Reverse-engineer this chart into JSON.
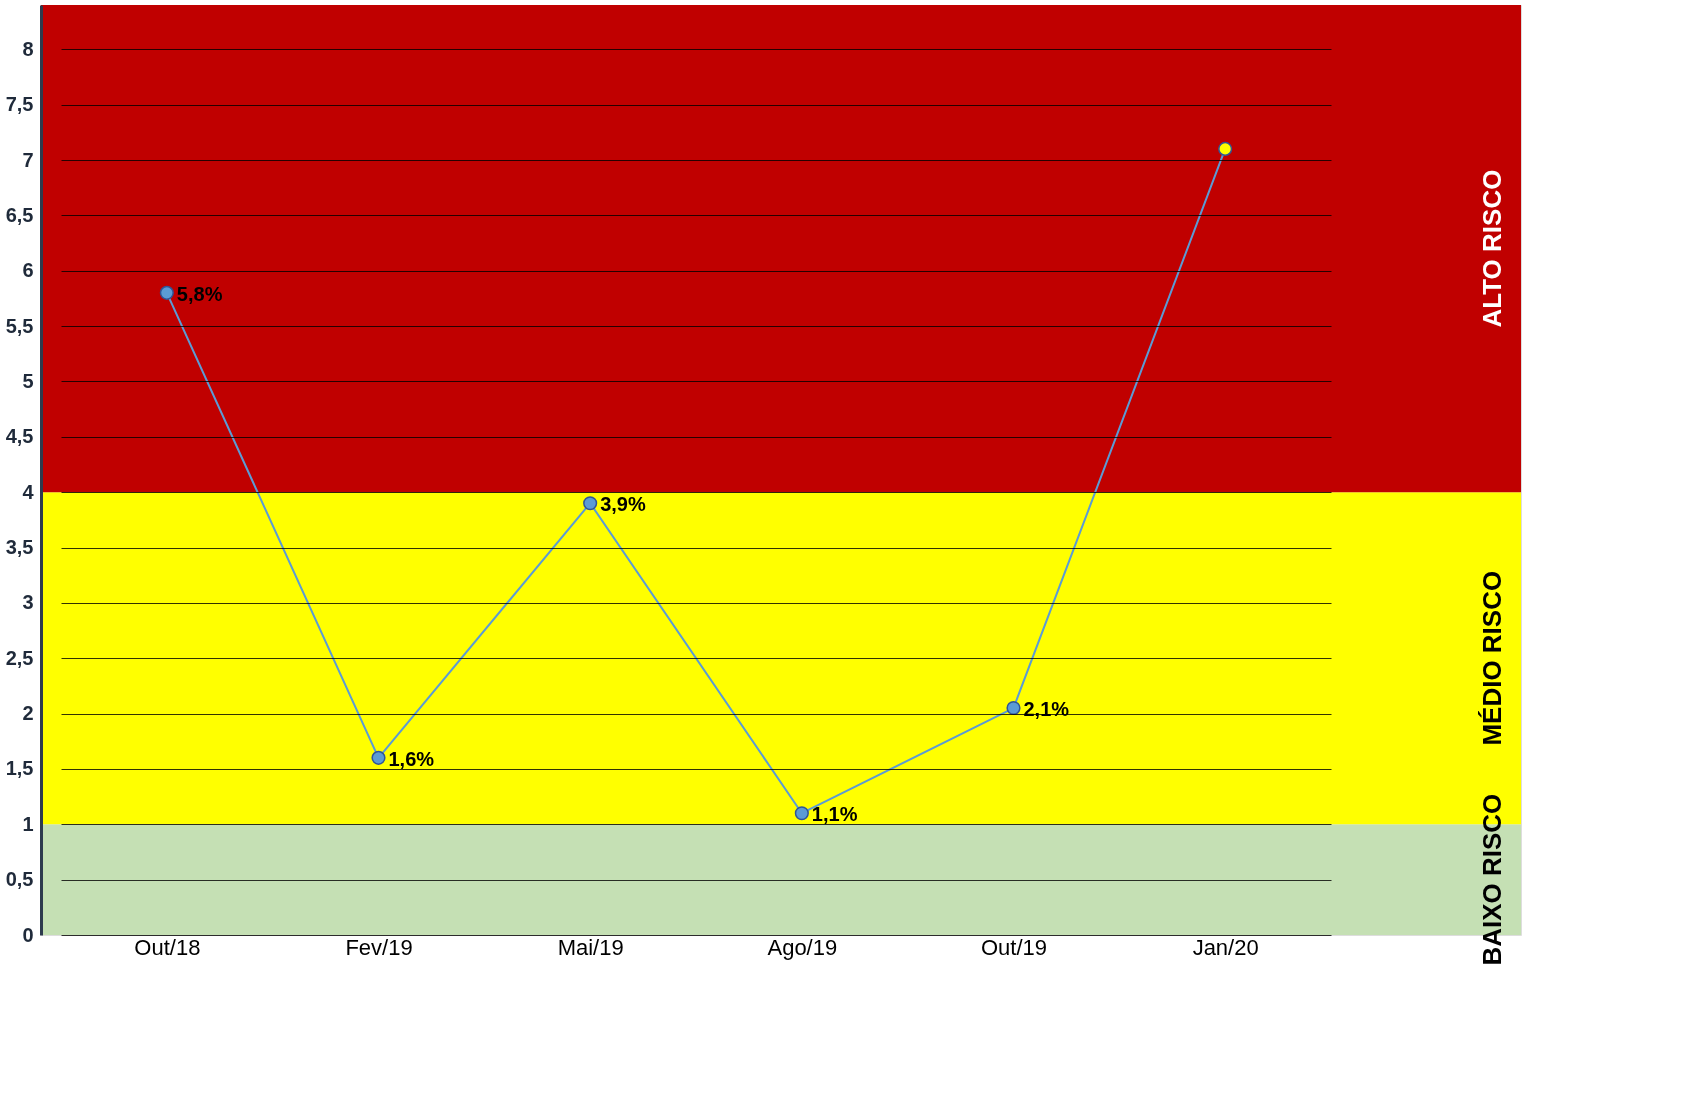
{
  "chart_data": {
    "type": "line",
    "categories": [
      "Out/18",
      "Fev/19",
      "Mai/19",
      "Ago/19",
      "Out/19",
      "Jan/20"
    ],
    "series": [
      {
        "color": "#5b9bd5",
        "colors": [
          "#5b9bd5",
          "#5b9bd5",
          "#5b9bd5",
          "#5b9bd5",
          "#5b9bd5",
          "#ffff00"
        ],
        "values": [
          5.8,
          1.6,
          3.9,
          1.1,
          2.05,
          7.1
        ],
        "value_labels": [
          "5,8%",
          "1,6%",
          "3,9%",
          "1,1%",
          "2,1%",
          null
        ]
      }
    ],
    "ylim": [
      0,
      8.4
    ],
    "yticks": [
      0,
      {
        "value": 0.5,
        "label": "0,5"
      },
      1,
      {
        "value": 1.5,
        "label": "1,5"
      },
      2,
      {
        "value": 2.5,
        "label": "2,5"
      },
      3,
      {
        "value": 3.5,
        "label": "3,5"
      },
      4,
      {
        "value": 4.5,
        "label": "4,5"
      },
      5,
      {
        "value": 5.5,
        "label": "5,5"
      },
      6,
      {
        "value": 6.5,
        "label": "6,5"
      },
      7,
      {
        "value": 7.5,
        "label": "7,5"
      },
      8
    ],
    "bands": [
      {
        "axis": "y",
        "from": 0,
        "to": 1,
        "label": "BAIXO RISCO",
        "color": "#c5e0b4"
      },
      {
        "axis": "y",
        "from": 1,
        "to": 4,
        "label": "MÉDIO RISCO",
        "color": "#ffff00"
      },
      {
        "axis": "y",
        "from": 4,
        "to": 8.4,
        "label": "ALTO RISCO",
        "color": "#c00000"
      }
    ],
    "grid": "y",
    "marker": "circle",
    "line_style": "solid"
  }
}
